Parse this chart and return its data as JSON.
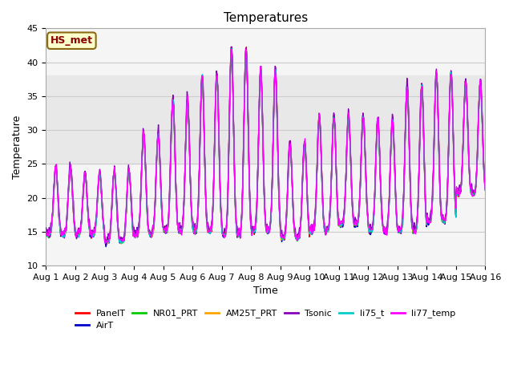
{
  "title": "Temperatures",
  "xlabel": "Time",
  "ylabel": "Temperature",
  "ylim": [
    10,
    45
  ],
  "xlim": [
    0,
    15
  ],
  "annotation_text": "HS_met",
  "annotation_color": "#8B0000",
  "annotation_bg": "#FFFFCC",
  "annotation_border": "#8B6914",
  "legend_entries": [
    "PanelT",
    "AirT",
    "NR01_PRT",
    "AM25T_PRT",
    "Tsonic",
    "li75_t",
    "li77_temp"
  ],
  "line_colors": {
    "PanelT": "#FF0000",
    "AirT": "#0000CD",
    "NR01_PRT": "#00CC00",
    "AM25T_PRT": "#FFA500",
    "Tsonic": "#8800BB",
    "li75_t": "#00CCCC",
    "li77_temp": "#FF00FF"
  },
  "shaded_band": [
    25,
    38
  ],
  "shaded_color": "#E8E8E8",
  "grid_color": "#CCCCCC",
  "background_color": "#F5F5F5",
  "n_days": 15,
  "pts_per_day": 48,
  "title_fontsize": 11,
  "label_fontsize": 9,
  "tick_fontsize": 8
}
